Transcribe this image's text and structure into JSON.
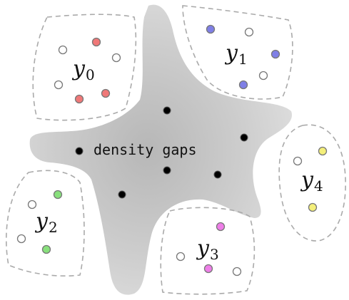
{
  "center_label": "density gaps",
  "clusters": [
    {
      "label": "y",
      "subscript": "0",
      "filled_color": "#f07878"
    },
    {
      "label": "y",
      "subscript": "1",
      "filled_color": "#7f7fe6"
    },
    {
      "label": "y",
      "subscript": "2",
      "filled_color": "#88e07c"
    },
    {
      "label": "y",
      "subscript": "3",
      "filled_color": "#ee7ee8"
    },
    {
      "label": "y",
      "subscript": "4",
      "filled_color": "#f4ef7a"
    }
  ],
  "colors": {
    "gap_region": "#d9d9d9",
    "gap_center": "#b9b9b9",
    "cluster_border": "#aaaaaa",
    "unlabeled_point": "#ffffff",
    "point_stroke": "#777777",
    "gap_point": "#000000"
  }
}
